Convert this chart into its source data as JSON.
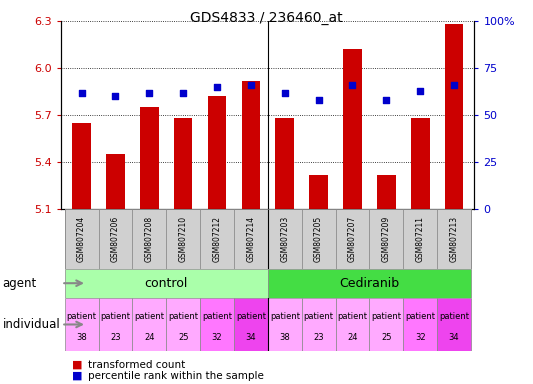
{
  "title": "GDS4833 / 236460_at",
  "samples": [
    "GSM807204",
    "GSM807206",
    "GSM807208",
    "GSM807210",
    "GSM807212",
    "GSM807214",
    "GSM807203",
    "GSM807205",
    "GSM807207",
    "GSM807209",
    "GSM807211",
    "GSM807213"
  ],
  "bar_values": [
    5.65,
    5.45,
    5.75,
    5.68,
    5.82,
    5.92,
    5.68,
    5.32,
    6.12,
    5.32,
    5.68,
    6.28
  ],
  "dot_values": [
    62,
    60,
    62,
    62,
    65,
    66,
    62,
    58,
    66,
    58,
    63,
    66
  ],
  "ylim": [
    5.1,
    6.3
  ],
  "y2lim": [
    0,
    100
  ],
  "yticks": [
    5.1,
    5.4,
    5.7,
    6.0,
    6.3
  ],
  "y2ticks": [
    0,
    25,
    50,
    75,
    100
  ],
  "bar_color": "#cc0000",
  "dot_color": "#0000cc",
  "agent_labels": [
    "control",
    "Cediranib"
  ],
  "agent_color_control": "#aaffaa",
  "agent_color_cediranib": "#44dd44",
  "individual_color_light": "#ffaaff",
  "individual_color_dark": "#ee44ee",
  "xlabel_agent": "agent",
  "xlabel_individual": "individual",
  "legend_bar": "transformed count",
  "legend_dot": "percentile rank within the sample",
  "tick_color_left": "#cc0000",
  "tick_color_right": "#0000cc",
  "bar_baseline": 5.1,
  "patient_nums": [
    38,
    23,
    24,
    25,
    32,
    34,
    38,
    23,
    24,
    25,
    32,
    34
  ],
  "gray_sample_bg": "#d0d0d0"
}
